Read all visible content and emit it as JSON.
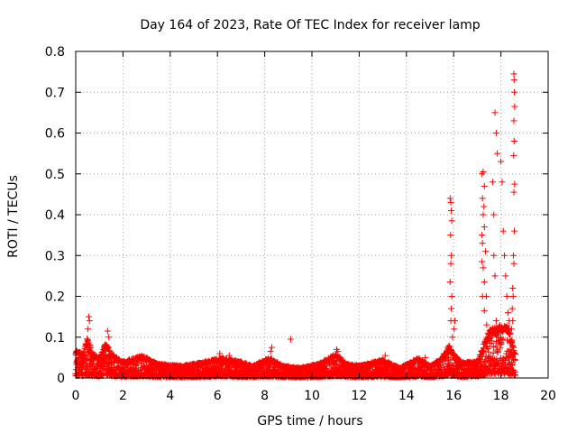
{
  "chart_data": {
    "type": "scatter",
    "title": "Day 164 of 2023, Rate Of TEC Index for receiver lamp",
    "xlabel": "GPS time / hours",
    "ylabel": "ROTI / TECUs",
    "xlim": [
      0,
      20
    ],
    "ylim": [
      0,
      0.8
    ],
    "x_ticks": [
      0,
      2,
      4,
      6,
      8,
      10,
      12,
      14,
      16,
      18,
      20
    ],
    "x_tick_labels": [
      "0",
      "2",
      "4",
      "6",
      "8",
      "10",
      "12",
      "14",
      "16",
      "18",
      "20"
    ],
    "y_ticks": [
      0,
      0.1,
      0.2,
      0.3,
      0.4,
      0.5,
      0.6,
      0.7,
      0.8
    ],
    "y_tick_labels": [
      "0",
      "0.1",
      "0.2",
      "0.3",
      "0.4",
      "0.5",
      "0.6",
      "0.7",
      "0.8"
    ],
    "grid": true,
    "marker": "+",
    "marker_color": "#ff0000",
    "series": [
      {
        "name": "ROTI",
        "baseline": {
          "x_start": 0.0,
          "x_end": 18.6,
          "x_step": 0.02,
          "envelope": [
            [
              0.0,
              0.07
            ],
            [
              0.3,
              0.06
            ],
            [
              0.5,
              0.1
            ],
            [
              0.7,
              0.06
            ],
            [
              1.0,
              0.05
            ],
            [
              1.3,
              0.09
            ],
            [
              1.5,
              0.06
            ],
            [
              2.0,
              0.04
            ],
            [
              2.8,
              0.055
            ],
            [
              3.5,
              0.035
            ],
            [
              4.5,
              0.03
            ],
            [
              5.5,
              0.04
            ],
            [
              6.2,
              0.05
            ],
            [
              7.0,
              0.04
            ],
            [
              7.5,
              0.03
            ],
            [
              8.2,
              0.05
            ],
            [
              8.8,
              0.03
            ],
            [
              9.5,
              0.025
            ],
            [
              10.3,
              0.035
            ],
            [
              11.0,
              0.06
            ],
            [
              11.5,
              0.035
            ],
            [
              12.0,
              0.03
            ],
            [
              13.0,
              0.045
            ],
            [
              13.7,
              0.025
            ],
            [
              14.5,
              0.05
            ],
            [
              15.0,
              0.03
            ],
            [
              15.5,
              0.05
            ],
            [
              15.8,
              0.08
            ],
            [
              16.0,
              0.06
            ],
            [
              16.3,
              0.04
            ],
            [
              17.0,
              0.04
            ],
            [
              17.5,
              0.12
            ],
            [
              17.9,
              0.13
            ],
            [
              18.3,
              0.13
            ],
            [
              18.6,
              0.06
            ]
          ]
        },
        "points": [
          [
            0.55,
            0.15
          ],
          [
            0.58,
            0.14
          ],
          [
            0.52,
            0.12
          ],
          [
            1.35,
            0.115
          ],
          [
            1.4,
            0.1
          ],
          [
            6.1,
            0.06
          ],
          [
            6.5,
            0.055
          ],
          [
            8.3,
            0.075
          ],
          [
            8.25,
            0.065
          ],
          [
            9.1,
            0.095
          ],
          [
            11.05,
            0.07
          ],
          [
            11.1,
            0.065
          ],
          [
            13.1,
            0.055
          ],
          [
            14.8,
            0.05
          ],
          [
            15.85,
            0.44
          ],
          [
            15.88,
            0.43
          ],
          [
            15.9,
            0.41
          ],
          [
            15.92,
            0.385
          ],
          [
            15.87,
            0.35
          ],
          [
            15.9,
            0.3
          ],
          [
            15.88,
            0.28
          ],
          [
            15.85,
            0.235
          ],
          [
            15.92,
            0.2
          ],
          [
            15.9,
            0.17
          ],
          [
            15.88,
            0.14
          ],
          [
            16.05,
            0.14
          ],
          [
            16.02,
            0.12
          ],
          [
            15.95,
            0.1
          ],
          [
            15.75,
            0.075
          ],
          [
            15.7,
            0.06
          ],
          [
            17.2,
            0.5
          ],
          [
            17.25,
            0.505
          ],
          [
            17.3,
            0.47
          ],
          [
            17.22,
            0.44
          ],
          [
            17.28,
            0.42
          ],
          [
            17.25,
            0.4
          ],
          [
            17.3,
            0.37
          ],
          [
            17.2,
            0.35
          ],
          [
            17.22,
            0.33
          ],
          [
            17.35,
            0.31
          ],
          [
            17.2,
            0.285
          ],
          [
            17.25,
            0.27
          ],
          [
            17.3,
            0.235
          ],
          [
            17.22,
            0.2
          ],
          [
            17.38,
            0.2
          ],
          [
            17.3,
            0.165
          ],
          [
            17.4,
            0.13
          ],
          [
            17.45,
            0.11
          ],
          [
            17.5,
            0.095
          ],
          [
            17.6,
            0.085
          ],
          [
            17.65,
            0.48
          ],
          [
            17.7,
            0.4
          ],
          [
            17.75,
            0.65
          ],
          [
            17.8,
            0.6
          ],
          [
            17.85,
            0.55
          ],
          [
            17.7,
            0.3
          ],
          [
            17.75,
            0.25
          ],
          [
            17.8,
            0.14
          ],
          [
            17.85,
            0.12
          ],
          [
            17.9,
            0.1
          ],
          [
            18.0,
            0.53
          ],
          [
            18.05,
            0.48
          ],
          [
            18.1,
            0.36
          ],
          [
            18.15,
            0.3
          ],
          [
            18.2,
            0.25
          ],
          [
            18.25,
            0.2
          ],
          [
            18.3,
            0.16
          ],
          [
            18.35,
            0.14
          ],
          [
            18.4,
            0.11
          ],
          [
            18.45,
            0.09
          ],
          [
            18.55,
            0.745
          ],
          [
            18.56,
            0.73
          ],
          [
            18.57,
            0.7
          ],
          [
            18.58,
            0.665
          ],
          [
            18.55,
            0.63
          ],
          [
            18.56,
            0.58
          ],
          [
            18.54,
            0.545
          ],
          [
            18.58,
            0.475
          ],
          [
            18.55,
            0.455
          ],
          [
            18.57,
            0.36
          ],
          [
            18.53,
            0.3
          ],
          [
            18.55,
            0.28
          ],
          [
            18.5,
            0.22
          ],
          [
            18.52,
            0.2
          ],
          [
            18.48,
            0.17
          ],
          [
            18.5,
            0.14
          ],
          [
            18.45,
            0.12
          ]
        ]
      }
    ]
  },
  "colors": {
    "marker": "#ff0000",
    "axis": "#000000",
    "grid": "#a0a0a0",
    "background": "#ffffff"
  }
}
